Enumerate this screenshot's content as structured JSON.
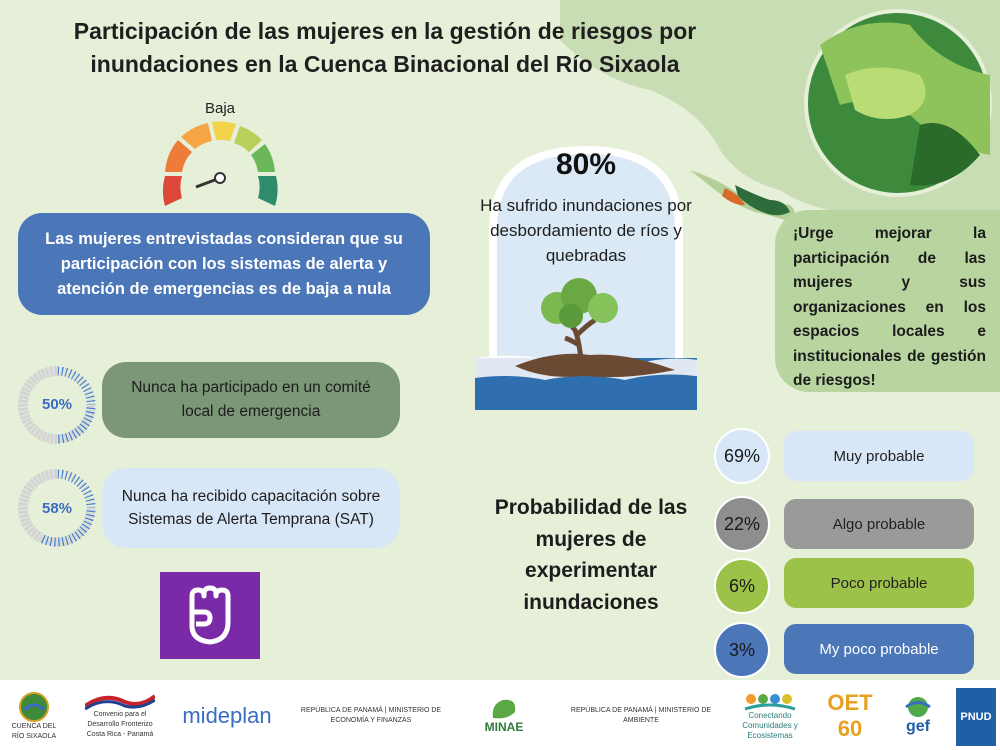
{
  "title": "Participación de las mujeres en la gestión de riesgos por inundaciones en la Cuenca Binacional del Río Sixaola",
  "gauge": {
    "label": "Baja"
  },
  "perception": "Las mujeres entrevistadas consideran que su participación con los sistemas de alerta y atención de emergencias es de baja a nula",
  "stats": [
    {
      "percent": "50%",
      "value": 0.5,
      "text": "Nunca ha participado en un comité local de emergencia"
    },
    {
      "percent": "58%",
      "value": 0.58,
      "text": "Nunca ha recibido capacitación sobre Sistemas de Alerta Temprana (SAT)"
    }
  ],
  "flood": {
    "percent": "80%",
    "text": "Ha sufrido inundaciones por desbordamiento de ríos y quebradas"
  },
  "urge": "¡Urge mejorar la participación de las mujeres y sus organizaciones en los espacios locales e institucionales de gestión de riesgos!",
  "probability": {
    "title": "Probabilidad de las mujeres de experimentar inundaciones",
    "items": [
      {
        "percent": "69%",
        "label": "Muy probable",
        "color": "#d8e7f8",
        "circle": "#d8e7f8"
      },
      {
        "percent": "22%",
        "label": "Algo probable",
        "color": "#9a9a9a",
        "circle": "#8e8e8e"
      },
      {
        "percent": "6%",
        "label": "Poco probable",
        "color": "#9dc24a",
        "circle": "#9dc24a"
      },
      {
        "percent": "3%",
        "label": "My poco probable",
        "color": "#4b76b8",
        "circle": "#4b76b8"
      }
    ]
  },
  "footer": {
    "logos": [
      {
        "name": "cuenca",
        "text": "CUENCA DEL RÍO SIXAOLA"
      },
      {
        "name": "convenio",
        "text": "Convenio para el Desarrollo Fronterizo Costa Rica - Panamá"
      },
      {
        "name": "mideplan",
        "text": "mideplan"
      },
      {
        "name": "panama-mef",
        "text": "REPÚBLICA DE PANAMÁ | MINISTERIO DE ECONOMÍA Y FINANZAS"
      },
      {
        "name": "minae",
        "text": "MINAE"
      },
      {
        "name": "panama-ambiente",
        "text": "REPÚBLICA DE PANAMÁ | MINISTERIO DE AMBIENTE"
      },
      {
        "name": "conectando",
        "text": "Conectando Comunidades y Ecosistemas"
      },
      {
        "name": "oet",
        "text": "OET 60"
      },
      {
        "name": "gef",
        "text": "gef"
      },
      {
        "name": "pnud",
        "text": "PNUD"
      }
    ]
  }
}
